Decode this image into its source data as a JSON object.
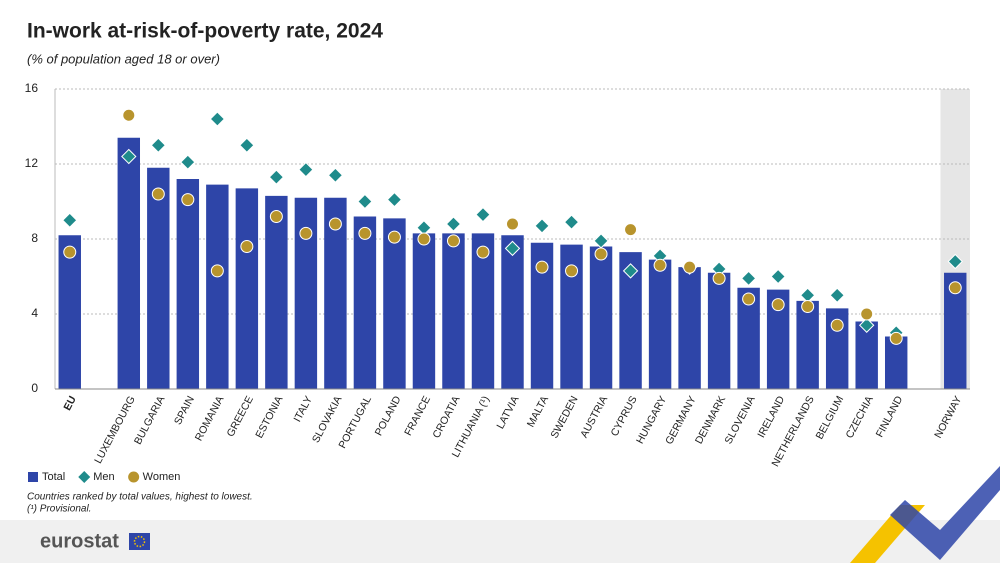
{
  "chart_data": {
    "type": "bar",
    "title": "In-work at-risk-of-poverty rate, 2024",
    "subtitle": "(% of population aged 18 or over)",
    "categories": [
      "EU",
      null,
      "LUXEMBOURG",
      "BULGARIA",
      "SPAIN",
      "ROMANIA",
      "GREECE",
      "ESTONIA",
      "ITALY",
      "SLOVAKIA",
      "PORTUGAL",
      "POLAND",
      "FRANCE",
      "CROATIA",
      "LITHUANIA (¹)",
      "LATVIA",
      "MALTA",
      "SWEDEN",
      "AUSTRIA",
      "CYPRUS",
      "HUNGARY",
      "GERMANY",
      "DENMARK",
      "SLOVENIA",
      "IRELAND",
      "NETHERLANDS",
      "BELGIUM",
      "CZECHIA",
      "FINLAND",
      null,
      "NORWAY"
    ],
    "series": [
      {
        "name": "Total",
        "color": "#2e45a8",
        "mark": "bar",
        "values": [
          8.2,
          null,
          13.4,
          11.8,
          11.2,
          10.9,
          10.7,
          10.3,
          10.2,
          10.2,
          9.2,
          9.1,
          8.3,
          8.3,
          8.3,
          8.2,
          7.8,
          7.7,
          7.6,
          7.3,
          6.9,
          6.5,
          6.2,
          5.4,
          5.3,
          4.7,
          4.3,
          3.6,
          2.8,
          null,
          6.2
        ]
      },
      {
        "name": "Men",
        "color": "#1f8b8b",
        "mark": "diamond",
        "values": [
          9.0,
          null,
          12.4,
          13.0,
          12.1,
          14.4,
          13.0,
          11.3,
          11.7,
          11.4,
          10.0,
          10.1,
          8.6,
          8.8,
          9.3,
          7.5,
          8.7,
          8.9,
          7.9,
          6.3,
          7.1,
          6.5,
          6.4,
          5.9,
          6.0,
          5.0,
          5.0,
          3.4,
          3.0,
          null,
          6.8
        ]
      },
      {
        "name": "Women",
        "color": "#b8942d",
        "mark": "circle",
        "values": [
          7.3,
          null,
          14.6,
          10.4,
          10.1,
          6.3,
          7.6,
          9.2,
          8.3,
          8.8,
          8.3,
          8.1,
          8.0,
          7.9,
          7.3,
          8.8,
          6.5,
          6.3,
          7.2,
          8.5,
          6.6,
          6.5,
          5.9,
          4.8,
          4.5,
          4.4,
          3.4,
          4.0,
          2.7,
          null,
          5.4
        ]
      }
    ],
    "ylim": [
      0,
      16
    ],
    "yticks": [
      0,
      4,
      8,
      12,
      16
    ],
    "grid": true,
    "legend": "bottom-left",
    "notes": [
      "Countries ranked by total values, highest to lowest.",
      "(¹) Provisional."
    ]
  },
  "footer": {
    "logo": "eurostat"
  }
}
